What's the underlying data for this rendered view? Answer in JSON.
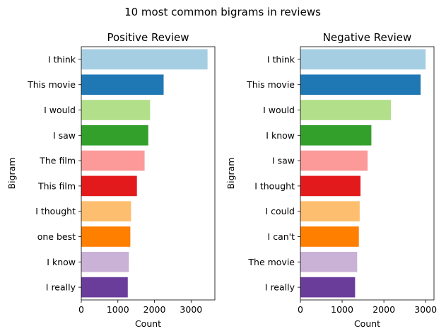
{
  "figure": {
    "suptitle": "10 most common bigrams in reviews"
  },
  "palette": [
    "#a6cee3",
    "#1f78b4",
    "#b2df8a",
    "#33a02c",
    "#fb9a99",
    "#e31a1c",
    "#fdbf6f",
    "#ff7f00",
    "#cab2d6",
    "#6a3d9a"
  ],
  "chart_data": [
    {
      "type": "bar",
      "orientation": "horizontal",
      "title": "Positive Review",
      "xlabel": "Count",
      "ylabel": "Bigram",
      "categories": [
        "I think",
        "This movie",
        "I would",
        "I saw",
        "The film",
        "This film",
        "I thought",
        "one best",
        "I know",
        "I really"
      ],
      "values": [
        3450,
        2250,
        1880,
        1830,
        1730,
        1520,
        1360,
        1340,
        1300,
        1270
      ],
      "xlim": [
        0,
        3650
      ],
      "xticks": [
        0,
        1000,
        2000,
        3000
      ],
      "grid": false,
      "legend": "none"
    },
    {
      "type": "bar",
      "orientation": "horizontal",
      "title": "Negative Review",
      "xlabel": "Count",
      "ylabel": "Bigram",
      "categories": [
        "I think",
        "This movie",
        "I would",
        "I know",
        "I saw",
        "I thought",
        "I could",
        "I can't",
        "The movie",
        "I really"
      ],
      "values": [
        3000,
        2880,
        2170,
        1700,
        1610,
        1440,
        1420,
        1400,
        1360,
        1310
      ],
      "xlim": [
        0,
        3200
      ],
      "xticks": [
        0,
        1000,
        2000,
        3000
      ],
      "grid": false,
      "legend": "none"
    }
  ]
}
